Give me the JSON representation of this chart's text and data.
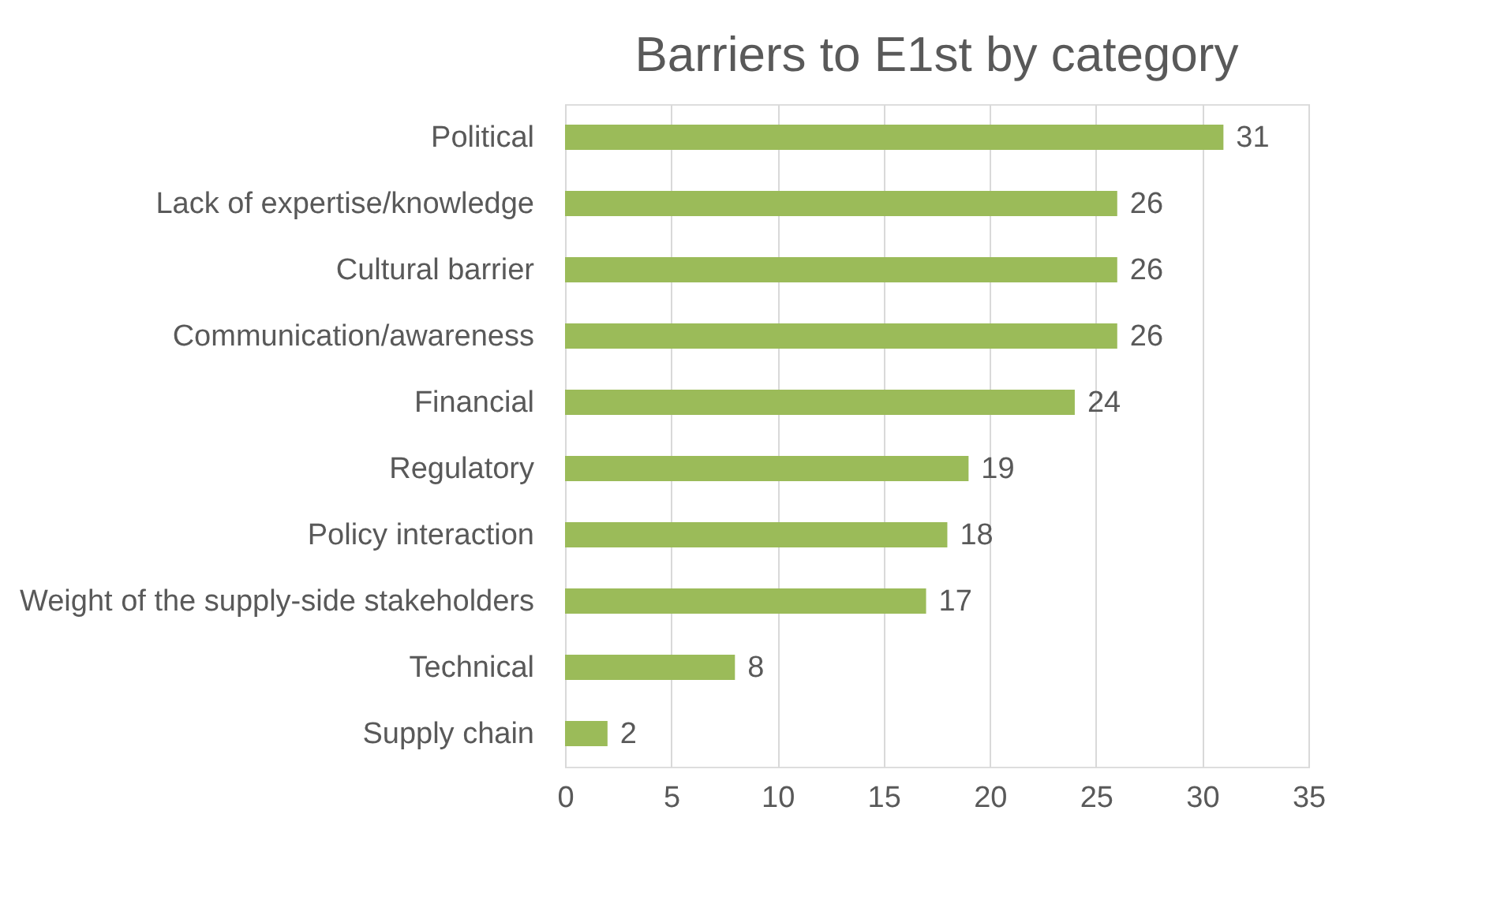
{
  "chart_data": {
    "type": "bar",
    "orientation": "horizontal",
    "title": "Barriers to E1st by category",
    "categories": [
      "Political",
      "Lack of expertise/knowledge",
      "Cultural barrier",
      "Communication/awareness",
      "Financial",
      "Regulatory",
      "Policy interaction",
      "Weight of the supply-side stakeholders",
      "Technical",
      "Supply chain"
    ],
    "values": [
      31,
      26,
      26,
      26,
      24,
      19,
      18,
      17,
      8,
      2
    ],
    "color": "#9bbb59",
    "xlim": [
      0,
      35
    ],
    "xticks": [
      0,
      5,
      10,
      15,
      20,
      25,
      30,
      35
    ],
    "grid": "x",
    "data_labels": true
  }
}
